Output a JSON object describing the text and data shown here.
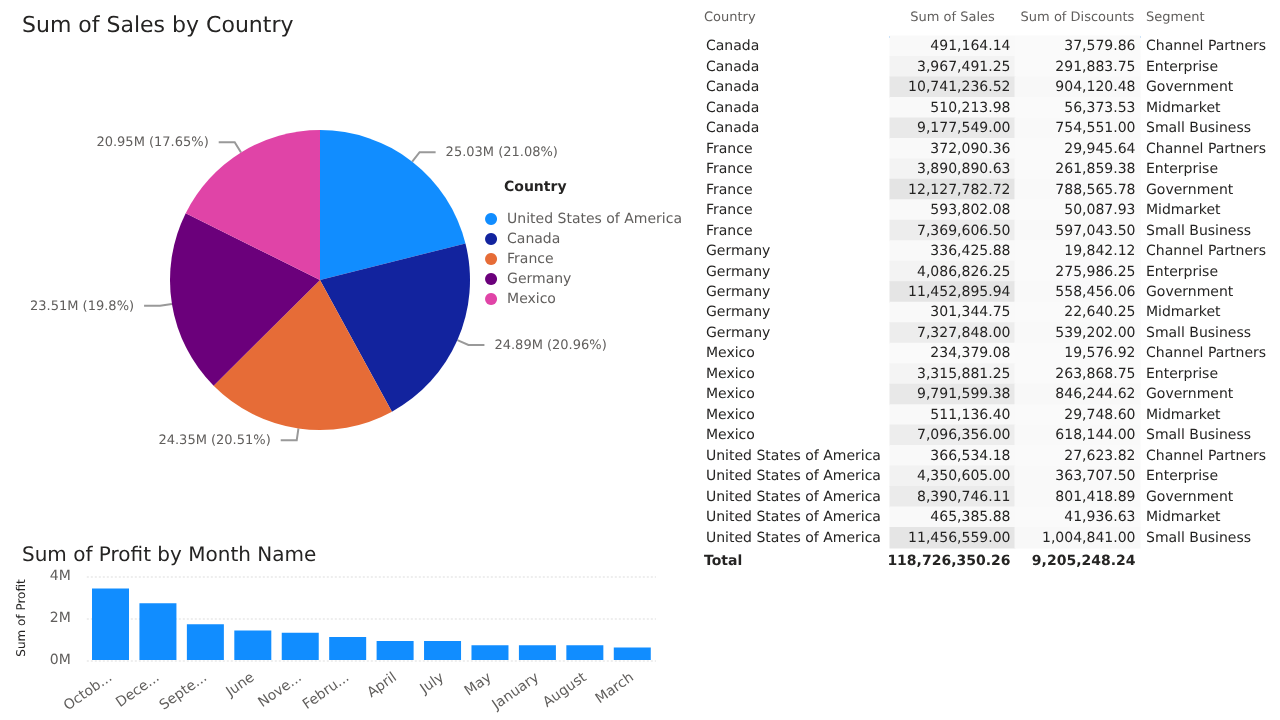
{
  "chart_data": [
    {
      "type": "pie",
      "title": "Sum of Sales by Country",
      "legend_title": "Country",
      "legend": "right",
      "categories": [
        "United States of America",
        "Canada",
        "France",
        "Germany",
        "Mexico"
      ],
      "values": [
        21.08,
        20.96,
        20.51,
        19.8,
        17.65
      ],
      "value_labels": [
        "25.03M (21.08%)",
        "24.89M (20.96%)",
        "24.35M (20.51%)",
        "23.51M (19.8%)",
        "20.95M (17.65%)"
      ],
      "colors": [
        "#118dff",
        "#12239e",
        "#e66c37",
        "#6b007b",
        "#e044a7"
      ]
    },
    {
      "type": "heatmap",
      "ylabel": "Country",
      "y2label": "Segment",
      "categories": [
        "Sum of Sales",
        "Sum of Discounts"
      ],
      "y_categories": [
        "Canada",
        "Canada",
        "Canada",
        "Canada",
        "Canada",
        "France",
        "France",
        "France",
        "France",
        "France",
        "Germany",
        "Germany",
        "Germany",
        "Germany",
        "Germany",
        "Mexico",
        "Mexico",
        "Mexico",
        "Mexico",
        "Mexico",
        "United States of America",
        "United States of America",
        "United States of America",
        "United States of America",
        "United States of America"
      ],
      "y2_categories": [
        "Channel Partners",
        "Enterprise",
        "Government",
        "Midmarket",
        "Small Business",
        "Channel Partners",
        "Enterprise",
        "Government",
        "Midmarket",
        "Small Business",
        "Channel Partners",
        "Enterprise",
        "Government",
        "Midmarket",
        "Small Business",
        "Channel Partners",
        "Enterprise",
        "Government",
        "Midmarket",
        "Small Business",
        "Channel Partners",
        "Enterprise",
        "Government",
        "Midmarket",
        "Small Business"
      ],
      "cells": [
        [
          491164.14,
          37579.86
        ],
        [
          3967491.25,
          291883.75
        ],
        [
          10741236.52,
          904120.48
        ],
        [
          510213.98,
          56373.53
        ],
        [
          9177549.0,
          754551.0
        ],
        [
          372090.36,
          29945.64
        ],
        [
          3890890.63,
          261859.38
        ],
        [
          12127782.72,
          788565.78
        ],
        [
          593802.08,
          50087.93
        ],
        [
          7369606.5,
          597043.5
        ],
        [
          336425.88,
          19842.12
        ],
        [
          4086826.25,
          275986.25
        ],
        [
          11452895.94,
          558456.06
        ],
        [
          301344.75,
          22640.25
        ],
        [
          7327848.0,
          539202.0
        ],
        [
          234379.08,
          19576.92
        ],
        [
          3315881.25,
          263868.75
        ],
        [
          9791599.38,
          846244.62
        ],
        [
          511136.4,
          29748.6
        ],
        [
          7096356.0,
          618144.0
        ],
        [
          366534.18,
          27623.82
        ],
        [
          4350605.0,
          363707.5
        ],
        [
          8390746.11,
          801418.89
        ],
        [
          465385.88,
          41936.63
        ],
        [
          11456559.0,
          1004841.0
        ]
      ],
      "cell_labels": [
        [
          "491,164.14",
          "37,579.86"
        ],
        [
          "3,967,491.25",
          "291,883.75"
        ],
        [
          "10,741,236.52",
          "904,120.48"
        ],
        [
          "510,213.98",
          "56,373.53"
        ],
        [
          "9,177,549.00",
          "754,551.00"
        ],
        [
          "372,090.36",
          "29,945.64"
        ],
        [
          "3,890,890.63",
          "261,859.38"
        ],
        [
          "12,127,782.72",
          "788,565.78"
        ],
        [
          "593,802.08",
          "50,087.93"
        ],
        [
          "7,369,606.50",
          "597,043.50"
        ],
        [
          "336,425.88",
          "19,842.12"
        ],
        [
          "4,086,826.25",
          "275,986.25"
        ],
        [
          "11,452,895.94",
          "558,456.06"
        ],
        [
          "301,344.75",
          "22,640.25"
        ],
        [
          "7,327,848.00",
          "539,202.00"
        ],
        [
          "234,379.08",
          "19,576.92"
        ],
        [
          "3,315,881.25",
          "263,868.75"
        ],
        [
          "9,791,599.38",
          "846,244.62"
        ],
        [
          "511,136.40",
          "29,748.60"
        ],
        [
          "7,096,356.00",
          "618,144.00"
        ],
        [
          "366,534.18",
          "27,623.82"
        ],
        [
          "4,350,605.00",
          "363,707.50"
        ],
        [
          "8,390,746.11",
          "801,418.89"
        ],
        [
          "465,385.88",
          "41,936.63"
        ],
        [
          "11,456,559.00",
          "1,004,841.00"
        ]
      ],
      "annotations": [
        "Total",
        "118,726,350.26",
        "9,205,248.24"
      ]
    },
    {
      "type": "bar",
      "title": "Sum of Profit by Month Name",
      "ylabel": "Sum of Profit",
      "color": "#118dff",
      "grid": "y",
      "categories": [
        "Octob...",
        "Dece...",
        "Septe...",
        "June",
        "Nove...",
        "Febru...",
        "April",
        "July",
        "May",
        "January",
        "August",
        "March"
      ],
      "values": [
        3.4,
        2.7,
        1.7,
        1.4,
        1.3,
        1.1,
        0.9,
        0.9,
        0.7,
        0.7,
        0.7,
        0.6
      ],
      "ylim": [
        0,
        4
      ],
      "yticks": [
        {
          "value": 0,
          "label": "0M"
        },
        {
          "value": 2,
          "label": "2M"
        },
        {
          "value": 4,
          "label": "4M"
        }
      ]
    }
  ]
}
